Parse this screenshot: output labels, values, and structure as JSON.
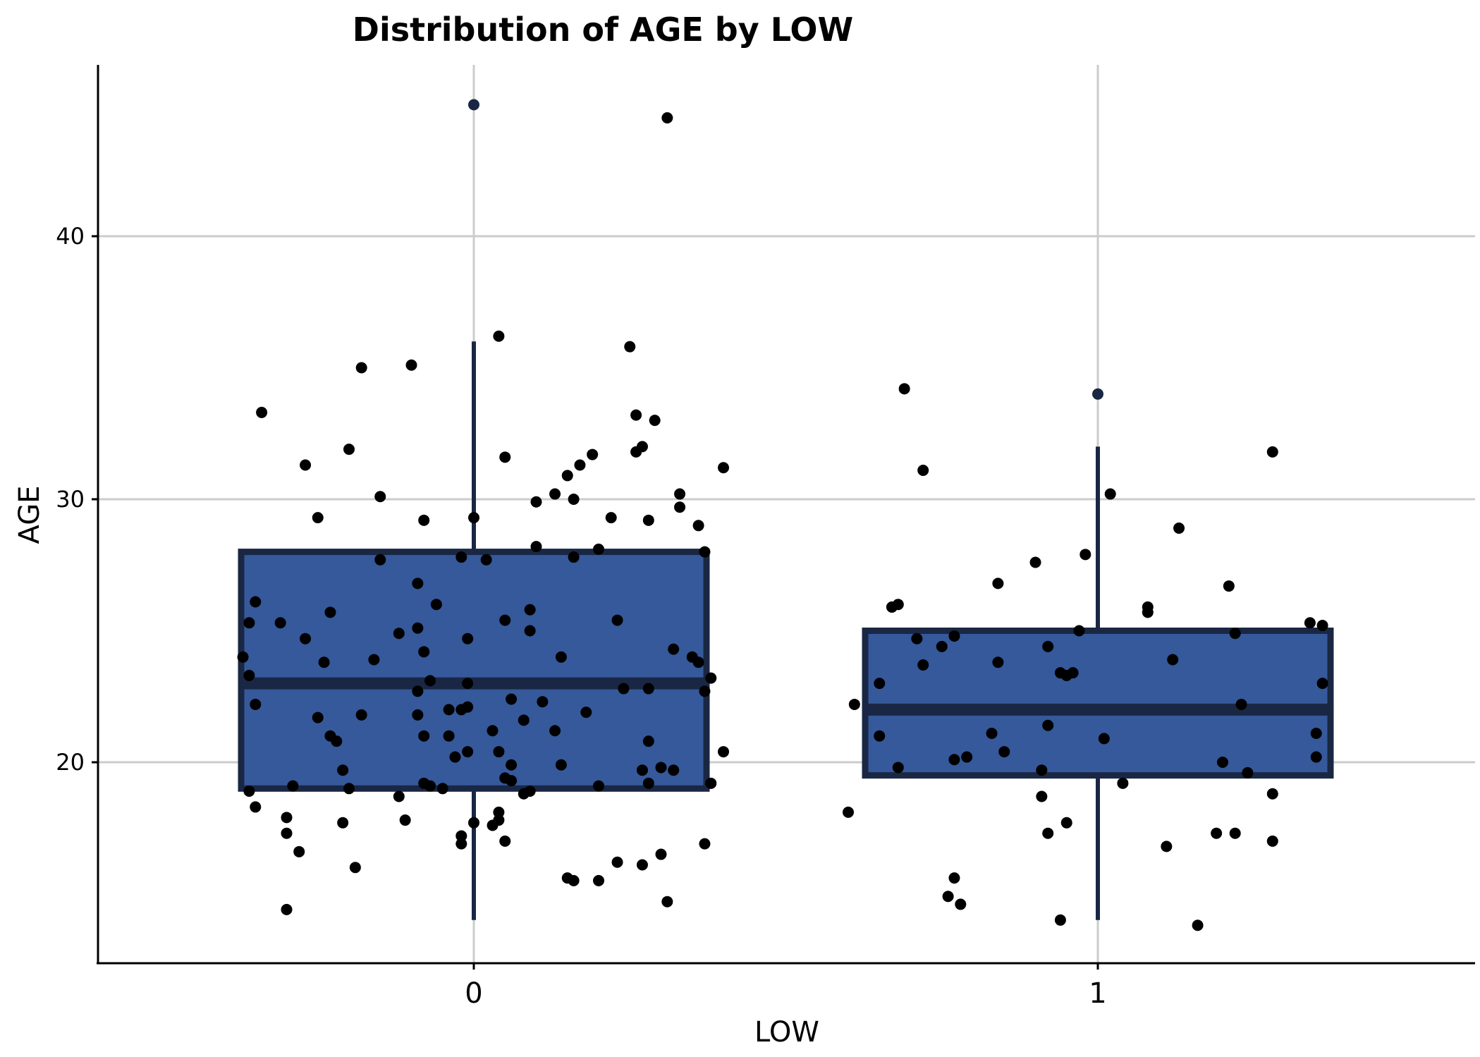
{
  "chart_data": {
    "type": "boxplot",
    "title": "Distribution of  AGE  by LOW",
    "xlabel": "LOW",
    "ylabel": "AGE",
    "categories": [
      "0",
      "1"
    ],
    "ylim": [
      13.5,
      47.5
    ],
    "yticks": [
      20,
      30,
      40
    ],
    "grid": true,
    "colors": {
      "box_fill": "#35599a",
      "box_edge": "#1a2744",
      "point": "#000000",
      "outlier": "#1a2744",
      "grid": "#cccccc"
    },
    "boxes": [
      {
        "category": "0",
        "q1": 19,
        "median": 23,
        "q3": 28,
        "whisker_low": 14,
        "whisker_high": 36,
        "outliers": [
          45
        ]
      },
      {
        "category": "1",
        "q1": 19.5,
        "median": 22,
        "q3": 25,
        "whisker_low": 14,
        "whisker_high": 32,
        "outliers": [
          34
        ]
      }
    ],
    "points": [
      {
        "x": -0.37,
        "y": 24.0
      },
      {
        "x": -0.36,
        "y": 23.3
      },
      {
        "x": -0.36,
        "y": 18.9
      },
      {
        "x": -0.36,
        "y": 25.3
      },
      {
        "x": -0.35,
        "y": 26.1
      },
      {
        "x": -0.35,
        "y": 22.2
      },
      {
        "x": -0.35,
        "y": 18.3
      },
      {
        "x": -0.34,
        "y": 33.3
      },
      {
        "x": -0.31,
        "y": 25.3
      },
      {
        "x": -0.3,
        "y": 17.9
      },
      {
        "x": -0.3,
        "y": 17.3
      },
      {
        "x": -0.3,
        "y": 14.4
      },
      {
        "x": -0.29,
        "y": 19.1
      },
      {
        "x": -0.28,
        "y": 16.6
      },
      {
        "x": -0.27,
        "y": 24.7
      },
      {
        "x": -0.27,
        "y": 31.3
      },
      {
        "x": -0.25,
        "y": 29.3
      },
      {
        "x": -0.25,
        "y": 21.7
      },
      {
        "x": -0.24,
        "y": 23.8
      },
      {
        "x": -0.23,
        "y": 25.7
      },
      {
        "x": -0.23,
        "y": 21.0
      },
      {
        "x": -0.22,
        "y": 20.8
      },
      {
        "x": -0.21,
        "y": 19.7
      },
      {
        "x": -0.21,
        "y": 17.7
      },
      {
        "x": -0.2,
        "y": 31.9
      },
      {
        "x": -0.2,
        "y": 19.0
      },
      {
        "x": -0.19,
        "y": 16.0
      },
      {
        "x": -0.18,
        "y": 35.0
      },
      {
        "x": -0.18,
        "y": 21.8
      },
      {
        "x": -0.16,
        "y": 23.9
      },
      {
        "x": -0.15,
        "y": 27.7
      },
      {
        "x": -0.15,
        "y": 30.1
      },
      {
        "x": -0.12,
        "y": 24.9
      },
      {
        "x": -0.12,
        "y": 18.7
      },
      {
        "x": -0.11,
        "y": 17.8
      },
      {
        "x": -0.1,
        "y": 35.1
      },
      {
        "x": -0.09,
        "y": 26.8
      },
      {
        "x": -0.09,
        "y": 25.1
      },
      {
        "x": -0.09,
        "y": 21.8
      },
      {
        "x": -0.09,
        "y": 22.7
      },
      {
        "x": -0.08,
        "y": 29.2
      },
      {
        "x": -0.08,
        "y": 24.2
      },
      {
        "x": -0.08,
        "y": 21.0
      },
      {
        "x": -0.08,
        "y": 19.2
      },
      {
        "x": -0.07,
        "y": 19.1
      },
      {
        "x": -0.07,
        "y": 23.1
      },
      {
        "x": -0.06,
        "y": 26.0
      },
      {
        "x": -0.05,
        "y": 19.0
      },
      {
        "x": -0.04,
        "y": 21.0
      },
      {
        "x": -0.04,
        "y": 22.0
      },
      {
        "x": -0.03,
        "y": 20.2
      },
      {
        "x": -0.02,
        "y": 27.8
      },
      {
        "x": -0.02,
        "y": 22.0
      },
      {
        "x": -0.02,
        "y": 17.2
      },
      {
        "x": -0.02,
        "y": 16.9
      },
      {
        "x": -0.01,
        "y": 24.7
      },
      {
        "x": -0.01,
        "y": 23.0
      },
      {
        "x": -0.01,
        "y": 22.1
      },
      {
        "x": -0.01,
        "y": 20.4
      },
      {
        "x": 0.0,
        "y": 29.3
      },
      {
        "x": 0.0,
        "y": 17.7
      },
      {
        "x": 0.02,
        "y": 27.7
      },
      {
        "x": 0.03,
        "y": 21.2
      },
      {
        "x": 0.03,
        "y": 17.6
      },
      {
        "x": 0.04,
        "y": 36.2
      },
      {
        "x": 0.04,
        "y": 20.4
      },
      {
        "x": 0.04,
        "y": 18.1
      },
      {
        "x": 0.04,
        "y": 17.8
      },
      {
        "x": 0.05,
        "y": 31.6
      },
      {
        "x": 0.05,
        "y": 25.4
      },
      {
        "x": 0.05,
        "y": 17.0
      },
      {
        "x": 0.05,
        "y": 19.4
      },
      {
        "x": 0.06,
        "y": 19.9
      },
      {
        "x": 0.06,
        "y": 22.4
      },
      {
        "x": 0.06,
        "y": 19.3
      },
      {
        "x": 0.08,
        "y": 21.6
      },
      {
        "x": 0.08,
        "y": 18.8
      },
      {
        "x": 0.09,
        "y": 18.9
      },
      {
        "x": 0.09,
        "y": 25.8
      },
      {
        "x": 0.09,
        "y": 25.0
      },
      {
        "x": 0.1,
        "y": 29.9
      },
      {
        "x": 0.1,
        "y": 28.2
      },
      {
        "x": 0.11,
        "y": 22.3
      },
      {
        "x": 0.13,
        "y": 30.2
      },
      {
        "x": 0.13,
        "y": 21.2
      },
      {
        "x": 0.14,
        "y": 24.0
      },
      {
        "x": 0.14,
        "y": 19.9
      },
      {
        "x": 0.15,
        "y": 30.9
      },
      {
        "x": 0.15,
        "y": 15.6
      },
      {
        "x": 0.16,
        "y": 30.0
      },
      {
        "x": 0.16,
        "y": 27.8
      },
      {
        "x": 0.16,
        "y": 15.5
      },
      {
        "x": 0.17,
        "y": 31.3
      },
      {
        "x": 0.18,
        "y": 21.9
      },
      {
        "x": 0.19,
        "y": 31.7
      },
      {
        "x": 0.2,
        "y": 28.1
      },
      {
        "x": 0.2,
        "y": 19.1
      },
      {
        "x": 0.2,
        "y": 15.5
      },
      {
        "x": 0.22,
        "y": 29.3
      },
      {
        "x": 0.23,
        "y": 25.4
      },
      {
        "x": 0.23,
        "y": 16.2
      },
      {
        "x": 0.24,
        "y": 22.8
      },
      {
        "x": 0.25,
        "y": 35.8
      },
      {
        "x": 0.26,
        "y": 33.2
      },
      {
        "x": 0.26,
        "y": 31.8
      },
      {
        "x": 0.27,
        "y": 32.0
      },
      {
        "x": 0.27,
        "y": 19.7
      },
      {
        "x": 0.27,
        "y": 16.1
      },
      {
        "x": 0.28,
        "y": 22.8
      },
      {
        "x": 0.28,
        "y": 20.8
      },
      {
        "x": 0.28,
        "y": 19.2
      },
      {
        "x": 0.28,
        "y": 29.2
      },
      {
        "x": 0.29,
        "y": 33.0
      },
      {
        "x": 0.3,
        "y": 19.8
      },
      {
        "x": 0.3,
        "y": 16.5
      },
      {
        "x": 0.31,
        "y": 14.7
      },
      {
        "x": 0.31,
        "y": 44.5
      },
      {
        "x": 0.32,
        "y": 24.3
      },
      {
        "x": 0.32,
        "y": 19.7
      },
      {
        "x": 0.33,
        "y": 30.2
      },
      {
        "x": 0.33,
        "y": 29.7
      },
      {
        "x": 0.35,
        "y": 24.0
      },
      {
        "x": 0.36,
        "y": 23.8
      },
      {
        "x": 0.36,
        "y": 29.0
      },
      {
        "x": 0.37,
        "y": 28.0
      },
      {
        "x": 0.37,
        "y": 16.9
      },
      {
        "x": 0.37,
        "y": 22.7
      },
      {
        "x": 0.38,
        "y": 19.2
      },
      {
        "x": 0.38,
        "y": 23.2
      },
      {
        "x": 0.4,
        "y": 31.2
      },
      {
        "x": 0.4,
        "y": 20.4
      },
      {
        "x": 0.6,
        "y": 18.1
      },
      {
        "x": 0.61,
        "y": 22.2
      },
      {
        "x": 0.65,
        "y": 23.0
      },
      {
        "x": 0.65,
        "y": 21.0
      },
      {
        "x": 0.67,
        "y": 25.9
      },
      {
        "x": 0.68,
        "y": 26.0
      },
      {
        "x": 0.68,
        "y": 19.8
      },
      {
        "x": 0.69,
        "y": 34.2
      },
      {
        "x": 0.71,
        "y": 24.7
      },
      {
        "x": 0.72,
        "y": 31.1
      },
      {
        "x": 0.72,
        "y": 23.7
      },
      {
        "x": 0.75,
        "y": 24.4
      },
      {
        "x": 0.76,
        "y": 14.9
      },
      {
        "x": 0.77,
        "y": 24.8
      },
      {
        "x": 0.77,
        "y": 20.1
      },
      {
        "x": 0.77,
        "y": 15.6
      },
      {
        "x": 0.78,
        "y": 14.6
      },
      {
        "x": 0.79,
        "y": 20.2
      },
      {
        "x": 0.83,
        "y": 21.1
      },
      {
        "x": 0.84,
        "y": 26.8
      },
      {
        "x": 0.84,
        "y": 23.8
      },
      {
        "x": 0.85,
        "y": 20.4
      },
      {
        "x": 0.9,
        "y": 27.6
      },
      {
        "x": 0.91,
        "y": 19.7
      },
      {
        "x": 0.91,
        "y": 18.7
      },
      {
        "x": 0.92,
        "y": 24.4
      },
      {
        "x": 0.92,
        "y": 21.4
      },
      {
        "x": 0.92,
        "y": 17.3
      },
      {
        "x": 0.94,
        "y": 14.0
      },
      {
        "x": 0.94,
        "y": 23.4
      },
      {
        "x": 0.95,
        "y": 23.3
      },
      {
        "x": 0.95,
        "y": 17.7
      },
      {
        "x": 0.96,
        "y": 23.4
      },
      {
        "x": 0.97,
        "y": 25.0
      },
      {
        "x": 0.98,
        "y": 27.9
      },
      {
        "x": 1.01,
        "y": 20.9
      },
      {
        "x": 1.02,
        "y": 30.2
      },
      {
        "x": 1.04,
        "y": 19.2
      },
      {
        "x": 1.08,
        "y": 25.9
      },
      {
        "x": 1.08,
        "y": 25.7
      },
      {
        "x": 1.11,
        "y": 16.8
      },
      {
        "x": 1.12,
        "y": 23.9
      },
      {
        "x": 1.13,
        "y": 28.9
      },
      {
        "x": 1.16,
        "y": 13.8
      },
      {
        "x": 1.19,
        "y": 17.3
      },
      {
        "x": 1.2,
        "y": 20.0
      },
      {
        "x": 1.21,
        "y": 26.7
      },
      {
        "x": 1.22,
        "y": 24.9
      },
      {
        "x": 1.22,
        "y": 17.3
      },
      {
        "x": 1.23,
        "y": 22.2
      },
      {
        "x": 1.24,
        "y": 19.6
      },
      {
        "x": 1.28,
        "y": 18.8
      },
      {
        "x": 1.28,
        "y": 17.0
      },
      {
        "x": 1.28,
        "y": 31.8
      },
      {
        "x": 1.34,
        "y": 25.3
      },
      {
        "x": 1.35,
        "y": 21.1
      },
      {
        "x": 1.35,
        "y": 20.2
      },
      {
        "x": 1.36,
        "y": 25.2
      },
      {
        "x": 1.36,
        "y": 23.0
      }
    ]
  }
}
